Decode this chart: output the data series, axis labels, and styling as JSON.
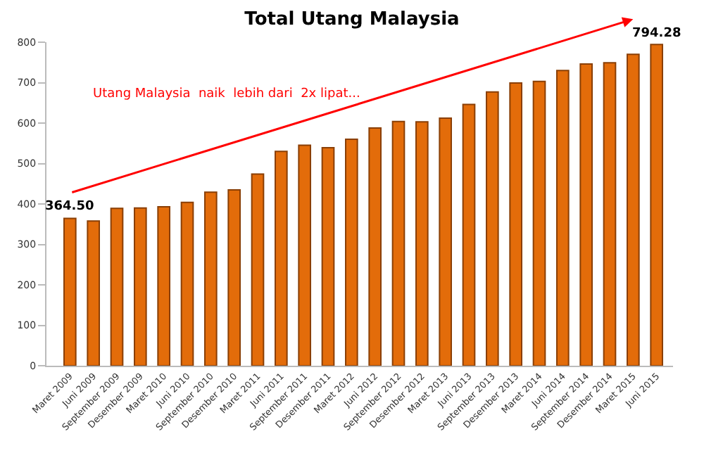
{
  "chart_data": {
    "type": "bar",
    "title": "Total Utang Malaysia",
    "categories": [
      "Maret 2009",
      "Juni 2009",
      "September 2009",
      "Desember 2009",
      "Maret 2010",
      "Juni 2010",
      "September 2010",
      "Desember 2010",
      "Maret 2011",
      "Juni 2011",
      "September 2011",
      "Desember 2011",
      "Maret 2012",
      "Juni 2012",
      "September 2012",
      "Desember 2012",
      "Maret 2013",
      "Juni 2013",
      "September 2013",
      "Desember 2013",
      "Maret 2014",
      "Juni 2014",
      "September 2014",
      "Desember 2014",
      "Maret 2015",
      "Juni 2015"
    ],
    "values": [
      364.5,
      358,
      389,
      390,
      393,
      404,
      429,
      435,
      474,
      530,
      545,
      539,
      560,
      588,
      604,
      603,
      612,
      646,
      677,
      699,
      703,
      730,
      746,
      749,
      770,
      794.28
    ],
    "value_labels": [
      "364.50",
      null,
      null,
      null,
      null,
      null,
      null,
      null,
      null,
      null,
      null,
      null,
      null,
      null,
      null,
      null,
      null,
      null,
      null,
      null,
      null,
      null,
      null,
      null,
      null,
      "794.28"
    ],
    "color": "#e36c0a",
    "ylim": [
      0,
      800
    ],
    "yticks": [
      0,
      100,
      200,
      300,
      400,
      500,
      600,
      700,
      800
    ],
    "grid": false,
    "legend": false,
    "annotations": [
      "Utang Malaysia  naik  lebih dari  2x lipat..."
    ]
  }
}
